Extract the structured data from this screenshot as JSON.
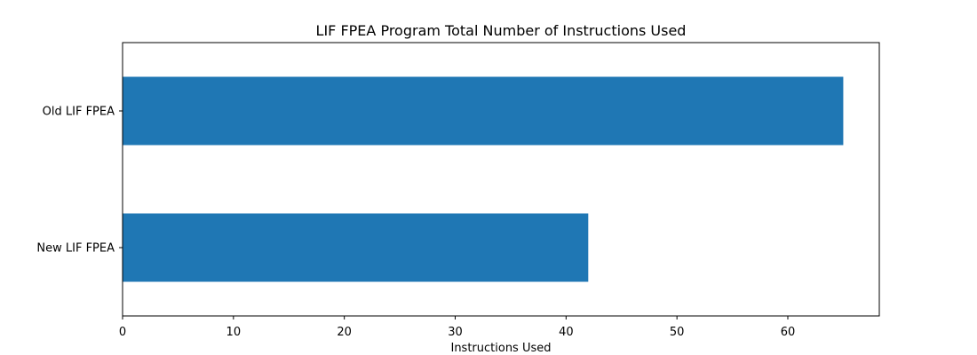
{
  "chart_data": {
    "type": "bar",
    "orientation": "horizontal",
    "title": "LIF FPEA Program Total Number of Instructions Used",
    "xlabel": "Instructions Used",
    "ylabel": "",
    "categories": [
      "Old LIF FPEA",
      "New LIF FPEA"
    ],
    "values": [
      65,
      42
    ],
    "xlim": [
      0,
      68.25
    ],
    "xticks": [
      0,
      10,
      20,
      30,
      40,
      50,
      60
    ],
    "bar_color": "#1f77b4",
    "grid": false,
    "legend": "none"
  }
}
